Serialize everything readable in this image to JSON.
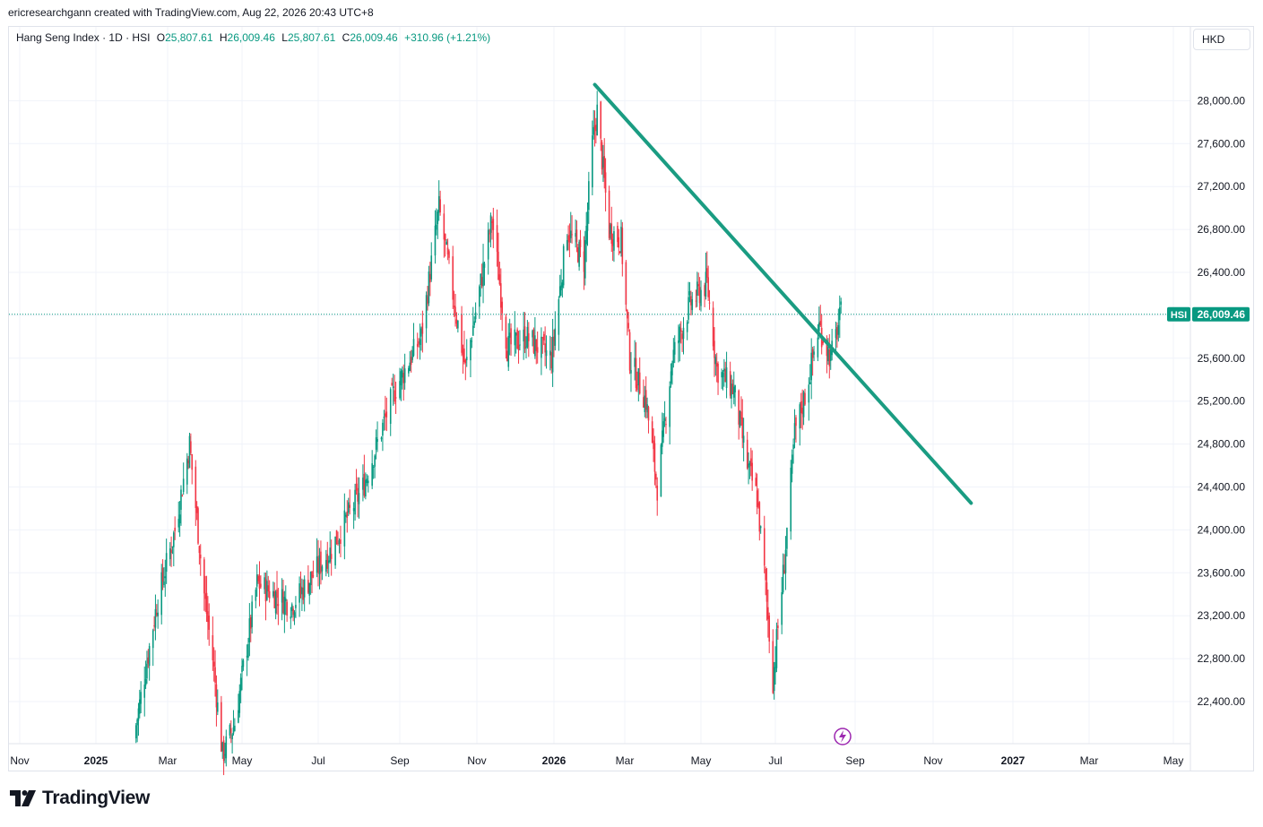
{
  "header": {
    "attribution": "ericresearchgann created with TradingView.com, Aug 22, 2026 20:43 UTC+8"
  },
  "legend": {
    "symbol": "Hang Seng Index · 1D · HSI",
    "open_label": "O",
    "open": "25,807.61",
    "high_label": "H",
    "high": "26,009.46",
    "low_label": "L",
    "low": "25,807.61",
    "close_label": "C",
    "close": "26,009.46",
    "change": "+310.96 (+1.21%)"
  },
  "currency_button": "HKD",
  "price_tag": {
    "symbol": "HSI",
    "value": "26,009.46"
  },
  "brand": {
    "name": "TradingView",
    "icon": "tradingview-logo-icon"
  },
  "alert_icon": "lightning-icon",
  "colors": {
    "up": "#089981",
    "down": "#f23645",
    "trendline": "#1a9c82",
    "last_price": "#089981",
    "alert": "#9c27b0"
  },
  "chart_data": {
    "type": "candlestick",
    "title": "Hang Seng Index · 1D · HSI",
    "y_ticks": [
      22400,
      22800,
      23200,
      23600,
      24000,
      24400,
      24800,
      25200,
      25600,
      26000,
      26400,
      26800,
      27200,
      27600,
      28000
    ],
    "y_tick_labels": [
      "22,400.00",
      "22,800.00",
      "23,200.00",
      "23,600.00",
      "24,000.00",
      "24,400.00",
      "24,800.00",
      "25,200.00",
      "25,600.00",
      "26,000.00",
      "26,400.00",
      "26,800.00",
      "27,200.00",
      "27,600.00",
      "28,000.00"
    ],
    "ylim": [
      22000,
      28400
    ],
    "x_ticks": [
      "Nov",
      "2025",
      "Mar",
      "May",
      "Jul",
      "Sep",
      "Nov",
      "2026",
      "Mar",
      "May",
      "Jul",
      "Sep",
      "Nov",
      "2027",
      "Mar",
      "May"
    ],
    "x_tick_bold": [
      "2025",
      "2026",
      "2027"
    ],
    "last_price": 26009.46,
    "price_path": [
      [
        "2025-02-01",
        22050
      ],
      [
        "2025-02-20",
        23300
      ],
      [
        "2025-03-07",
        24000
      ],
      [
        "2025-03-19",
        24800
      ],
      [
        "2025-03-31",
        23400
      ],
      [
        "2025-04-07",
        22800
      ],
      [
        "2025-04-15",
        21900
      ],
      [
        "2025-04-25",
        22200
      ],
      [
        "2025-05-13",
        23500
      ],
      [
        "2025-06-10",
        23300
      ],
      [
        "2025-07-10",
        23800
      ],
      [
        "2025-08-04",
        24400
      ],
      [
        "2025-08-28",
        25300
      ],
      [
        "2025-09-18",
        25800
      ],
      [
        "2025-10-02",
        27000
      ],
      [
        "2025-10-13",
        26200
      ],
      [
        "2025-10-23",
        25500
      ],
      [
        "2025-11-13",
        26900
      ],
      [
        "2025-11-25",
        25700
      ],
      [
        "2025-12-10",
        25800
      ],
      [
        "2025-12-30",
        25600
      ],
      [
        "2026-01-12",
        26800
      ],
      [
        "2026-01-26",
        26500
      ],
      [
        "2026-02-02",
        27600
      ],
      [
        "2026-02-06",
        27900
      ],
      [
        "2026-02-16",
        26800
      ],
      [
        "2026-02-26",
        26700
      ],
      [
        "2026-03-05",
        25600
      ],
      [
        "2026-03-18",
        25200
      ],
      [
        "2026-03-27",
        24400
      ],
      [
        "2026-04-08",
        25600
      ],
      [
        "2026-04-22",
        26100
      ],
      [
        "2026-05-06",
        26300
      ],
      [
        "2026-05-14",
        25500
      ],
      [
        "2026-05-28",
        25300
      ],
      [
        "2026-06-08",
        24600
      ],
      [
        "2026-06-16",
        24300
      ],
      [
        "2026-06-22",
        23600
      ],
      [
        "2026-06-29",
        22600
      ],
      [
        "2026-07-08",
        23700
      ],
      [
        "2026-07-16",
        24900
      ],
      [
        "2026-07-25",
        25300
      ],
      [
        "2026-08-04",
        25900
      ],
      [
        "2026-08-13",
        25600
      ],
      [
        "2026-08-21",
        26009.46
      ]
    ],
    "trendline": {
      "start": [
        "2026-02-04",
        28150
      ],
      "end": [
        "2026-11-30",
        24250
      ]
    },
    "grid": true
  }
}
